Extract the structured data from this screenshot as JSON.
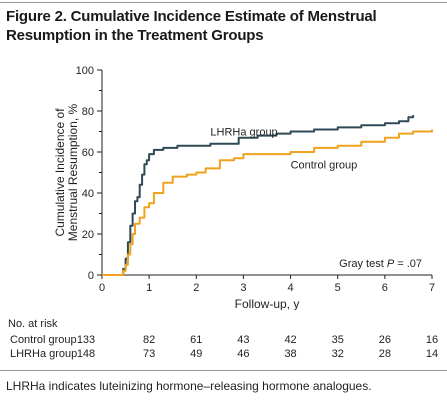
{
  "figure": {
    "title": "Figure 2. Cumulative Incidence Estimate of Menstrual Resumption in the Treatment Groups",
    "caption": "LHRHa indicates luteinizing hormone–releasing hormone analogues."
  },
  "colors": {
    "lhrha": "#2e4a57",
    "control": "#f0a21e",
    "axis": "#231f20"
  },
  "chart_data": {
    "type": "line",
    "title": "",
    "xlabel": "Follow-up, y",
    "ylabel": "Cumulative Incidence of Menstrual Resumption, %",
    "xlim": [
      0,
      7
    ],
    "ylim": [
      0,
      100
    ],
    "x_ticks": [
      "0",
      "1",
      "2",
      "3",
      "4",
      "5",
      "6",
      "7"
    ],
    "y_ticks": [
      "0",
      "20",
      "40",
      "60",
      "80",
      "100"
    ],
    "grid": false,
    "annotation": "Gray test P = .07",
    "series": [
      {
        "name": "LHRHa group",
        "color_key": "lhrha",
        "points": [
          [
            0,
            0
          ],
          [
            0.4,
            0
          ],
          [
            0.45,
            3
          ],
          [
            0.5,
            8
          ],
          [
            0.55,
            16
          ],
          [
            0.6,
            24
          ],
          [
            0.65,
            30
          ],
          [
            0.7,
            36
          ],
          [
            0.75,
            38
          ],
          [
            0.8,
            44
          ],
          [
            0.85,
            49
          ],
          [
            0.9,
            54
          ],
          [
            0.95,
            56
          ],
          [
            1.0,
            59
          ],
          [
            1.1,
            61
          ],
          [
            1.3,
            62
          ],
          [
            1.6,
            63
          ],
          [
            2.0,
            63
          ],
          [
            2.3,
            64
          ],
          [
            2.6,
            64
          ],
          [
            2.9,
            67
          ],
          [
            3.3,
            68
          ],
          [
            3.7,
            69
          ],
          [
            4.0,
            70
          ],
          [
            4.5,
            71
          ],
          [
            5.0,
            72
          ],
          [
            5.5,
            73
          ],
          [
            6.0,
            74
          ],
          [
            6.3,
            75
          ],
          [
            6.5,
            77
          ],
          [
            6.6,
            78
          ]
        ]
      },
      {
        "name": "Control group",
        "color_key": "control",
        "points": [
          [
            0,
            0
          ],
          [
            0.4,
            0
          ],
          [
            0.45,
            2
          ],
          [
            0.5,
            5
          ],
          [
            0.55,
            10
          ],
          [
            0.6,
            15
          ],
          [
            0.65,
            20
          ],
          [
            0.7,
            25
          ],
          [
            0.8,
            28
          ],
          [
            0.9,
            33
          ],
          [
            1.0,
            35
          ],
          [
            1.1,
            40
          ],
          [
            1.3,
            45
          ],
          [
            1.5,
            48
          ],
          [
            1.8,
            49
          ],
          [
            2.0,
            50
          ],
          [
            2.2,
            52
          ],
          [
            2.5,
            56
          ],
          [
            2.8,
            57
          ],
          [
            3.0,
            59
          ],
          [
            3.5,
            59
          ],
          [
            4.0,
            60
          ],
          [
            4.5,
            62
          ],
          [
            5.0,
            63
          ],
          [
            5.5,
            65
          ],
          [
            6.0,
            67
          ],
          [
            6.3,
            69
          ],
          [
            6.6,
            70
          ],
          [
            7.0,
            71
          ]
        ]
      }
    ],
    "series_labels": [
      {
        "text": "LHRHa group",
        "x": 2.3,
        "y": 68,
        "color_key": "axis"
      },
      {
        "text": "Control group",
        "x": 4.0,
        "y": 52,
        "color_key": "axis"
      }
    ]
  },
  "risk_table": {
    "heading": "No. at risk",
    "times": [
      0,
      1,
      2,
      3,
      4,
      5,
      6,
      7
    ],
    "rows": [
      {
        "label": "Control group",
        "values": [
          "133",
          "82",
          "61",
          "43",
          "42",
          "35",
          "26",
          "16"
        ]
      },
      {
        "label": "LHRHa group",
        "values": [
          "148",
          "73",
          "49",
          "46",
          "38",
          "32",
          "28",
          "14"
        ]
      }
    ]
  }
}
